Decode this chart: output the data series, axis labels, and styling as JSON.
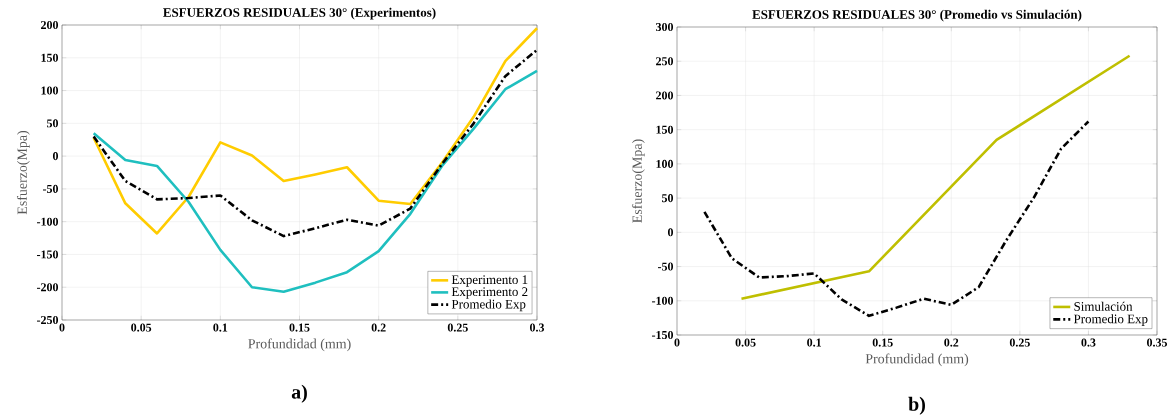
{
  "chart_data": [
    {
      "type": "line",
      "title": "ESFUERZOS RESIDUALES 30° (Experimentos)",
      "xlabel": "Profundidad (mm)",
      "ylabel": "Esfuerzo(Mpa)",
      "annotations": [
        "a)"
      ],
      "x": [
        0.02,
        0.04,
        0.06,
        0.08,
        0.1,
        0.12,
        0.14,
        0.16,
        0.18,
        0.2,
        0.22,
        0.24,
        0.26,
        0.28,
        0.3
      ],
      "series": [
        {
          "name": "Experimento 1",
          "color": "#ffcc00",
          "line_style": "solid",
          "values": [
            28,
            -72,
            -118,
            -62,
            21,
            1,
            -38,
            -28,
            -17,
            -68,
            -73,
            -10,
            60,
            145,
            195
          ]
        },
        {
          "name": "Experimento 2",
          "color": "#1fbfbf",
          "line_style": "solid",
          "values": [
            35,
            -6,
            -15,
            -70,
            -143,
            -200,
            -207,
            -193,
            -177,
            -145,
            -88,
            -15,
            42,
            102,
            130
          ]
        },
        {
          "name": "Promedio Exp",
          "color": "#000000",
          "line_style": "dashed",
          "values": [
            30,
            -38,
            -66,
            -64,
            -60,
            -98,
            -122,
            -110,
            -97,
            -106,
            -80,
            -12,
            50,
            122,
            162
          ]
        }
      ],
      "xlim": [
        0,
        0.3
      ],
      "ylim": [
        -250,
        200
      ],
      "xticks": [
        0,
        0.05,
        0.1,
        0.15,
        0.2,
        0.25,
        0.3
      ],
      "yticks": [
        -250,
        -200,
        -150,
        -100,
        -50,
        0,
        50,
        100,
        150,
        200
      ],
      "grid": true,
      "legend": "bottom right",
      "marker": "none"
    },
    {
      "type": "line",
      "title": "ESFUERZOS RESIDUALES 30° (Promedio vs Simulación)",
      "xlabel": "Profundidad (mm)",
      "ylabel": "Esfuerzo(Mpa)",
      "annotations": [
        "b)"
      ],
      "series": [
        {
          "name": "Simulación",
          "color": "#bfbf00",
          "line_style": "solid",
          "x": [
            0.047,
            0.14,
            0.233,
            0.33
          ],
          "values": [
            -97,
            -57,
            135,
            258
          ]
        },
        {
          "name": "Promedio Exp",
          "color": "#000000",
          "line_style": "dashed",
          "x": [
            0.02,
            0.04,
            0.06,
            0.08,
            0.1,
            0.12,
            0.14,
            0.16,
            0.18,
            0.2,
            0.22,
            0.24,
            0.26,
            0.28,
            0.3
          ],
          "values": [
            30,
            -38,
            -66,
            -64,
            -60,
            -98,
            -122,
            -110,
            -97,
            -106,
            -80,
            -12,
            50,
            122,
            162
          ]
        }
      ],
      "xlim": [
        0,
        0.35
      ],
      "ylim": [
        -150,
        300
      ],
      "xticks": [
        0,
        0.05,
        0.1,
        0.15,
        0.2,
        0.25,
        0.3,
        0.35
      ],
      "yticks": [
        -150,
        -100,
        -50,
        0,
        50,
        100,
        150,
        200,
        250,
        300
      ],
      "grid": true,
      "legend": "bottom right",
      "marker": "none"
    }
  ]
}
